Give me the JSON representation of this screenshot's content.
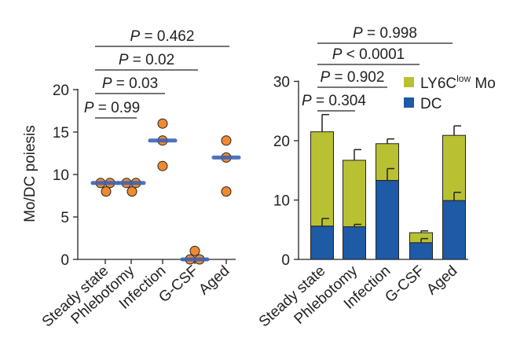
{
  "chart_data": [
    {
      "type": "scatter",
      "ylabel": "Mo/DC poiesis",
      "ylim": [
        0,
        20
      ],
      "yticks": [
        0,
        5,
        10,
        15,
        20
      ],
      "categories": [
        "Steady state",
        "Phlebotomy",
        "Infection",
        "G-CSF",
        "Aged"
      ],
      "points": [
        [
          9,
          9,
          8
        ],
        [
          9,
          9,
          8
        ],
        [
          16,
          14,
          11
        ],
        [
          1,
          0,
          0
        ],
        [
          14,
          12,
          8
        ]
      ],
      "means": [
        9,
        9,
        14,
        0,
        12
      ],
      "colors": {
        "point": "#f08a30",
        "mean": "#3c64b4"
      },
      "comparisons": [
        {
          "from": 0,
          "to": 1,
          "label": "P = 0.99"
        },
        {
          "from": 0,
          "to": 2,
          "label": "P = 0.03"
        },
        {
          "from": 0,
          "to": 3,
          "label": "P = 0.02"
        },
        {
          "from": 0,
          "to": 4,
          "label": "P = 0.462"
        }
      ]
    },
    {
      "type": "bar",
      "stacked": true,
      "ylim": [
        0,
        30
      ],
      "yticks": [
        0,
        10,
        20,
        30
      ],
      "categories": [
        "Steady state",
        "Phlebotomy",
        "Infection",
        "G-CSF",
        "Aged"
      ],
      "series": [
        {
          "name": "DC",
          "color": "#1f5aa6",
          "values": [
            5.6,
            5.5,
            13.3,
            2.8,
            9.9
          ],
          "errors": [
            1.3,
            0.4,
            2.0,
            0.7,
            1.4
          ]
        },
        {
          "name": "LY6C low Mo",
          "label_main": "LY6C",
          "label_sup": "low",
          "label_tail": " Mo",
          "color": "#b9c133",
          "values": [
            15.9,
            11.2,
            6.2,
            1.7,
            11.0
          ],
          "errors": [
            2.9,
            1.8,
            0.8,
            0.3,
            1.6
          ]
        }
      ],
      "comparisons": [
        {
          "from": 0,
          "to": 1,
          "label": "P = 0.304"
        },
        {
          "from": 0,
          "to": 2,
          "label": "P = 0.902"
        },
        {
          "from": 0,
          "to": 3,
          "label": "P < 0.0001"
        },
        {
          "from": 0,
          "to": 4,
          "label": "P = 0.998"
        }
      ]
    }
  ]
}
